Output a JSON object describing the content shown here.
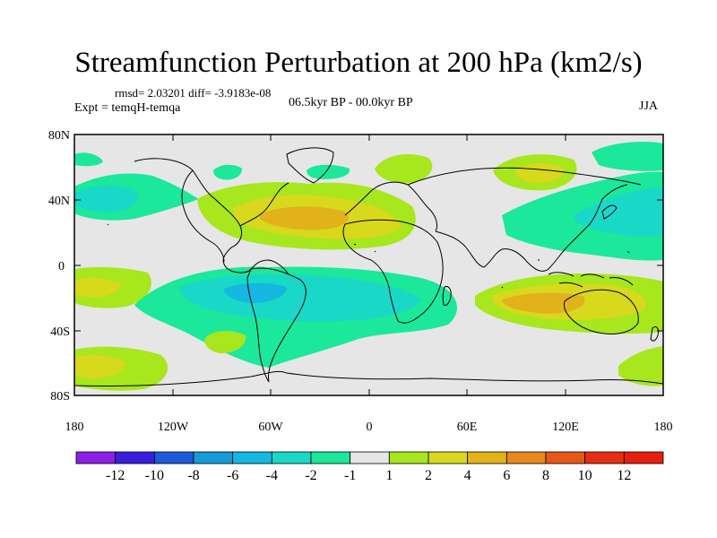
{
  "title": "Streamfunction Perturbation at 200 hPa (km2/s)",
  "stats": "rmsd= 2.03201 diff= -3.9183e-08",
  "experiment": "Expt = temqH-temqa",
  "period": "06.5kyr BP - 00.0kyr BP",
  "season": "JJA",
  "lat_ticks": [
    "80N",
    "40N",
    "0",
    "40S",
    "80S"
  ],
  "lon_ticks": [
    "180",
    "120W",
    "60W",
    "0",
    "60E",
    "120E",
    "180"
  ],
  "colorbar": {
    "labels": [
      "-12",
      "-10",
      "-8",
      "-6",
      "-4",
      "-2",
      "-1",
      "1",
      "2",
      "4",
      "6",
      "8",
      "10",
      "12"
    ],
    "colors": [
      "#8a1fe6",
      "#3a1ee0",
      "#1d5ad8",
      "#169ad8",
      "#14b8e0",
      "#19d8c8",
      "#1be89a",
      "#e6e6e6",
      "#a8e61e",
      "#d8d81c",
      "#e2b21a",
      "#e6881c",
      "#e65818",
      "#e62e14",
      "#e61e10"
    ]
  },
  "legend_colors": {
    "neg_light": "#1be89a",
    "neg_mid": "#19d8c8",
    "neg_strong": "#14b8e0",
    "neg_deep": "#169ad8",
    "neutral": "#e6e6e6",
    "pos_light": "#a8e61e",
    "pos_mid": "#d8d81c",
    "pos_strong": "#e2b21a"
  }
}
